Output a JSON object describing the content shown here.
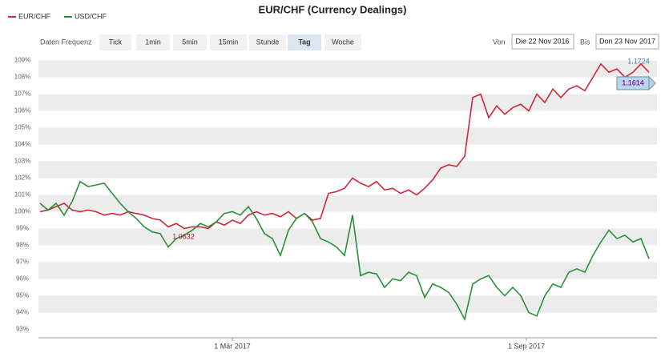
{
  "chart_data": {
    "type": "line",
    "title": "EUR/CHF (Currency Dealings)",
    "toolbar": {
      "label": "Daten Frequenz",
      "buttons": [
        "Tick",
        "1min",
        "5min",
        "15min",
        "Stunde",
        "Tag",
        "Woche"
      ],
      "selected": 5,
      "from_label": "Von",
      "from": "Die 22 Nov 2016",
      "to_label": "Bis",
      "to": "Don 23 Nov 2017"
    },
    "series": [
      {
        "name": "EUR/CHF",
        "color": "#d0263a",
        "values": [
          100.0,
          100.1,
          100.3,
          100.5,
          100.1,
          100.0,
          100.1,
          100.0,
          99.8,
          99.9,
          99.8,
          100.0,
          99.9,
          99.8,
          99.6,
          99.5,
          99.1,
          99.3,
          99.0,
          99.1,
          99.1,
          99.0,
          99.4,
          99.2,
          99.5,
          99.3,
          99.8,
          100.0,
          99.8,
          99.9,
          99.7,
          100.0,
          99.6,
          99.9,
          99.5,
          99.6,
          101.1,
          101.2,
          101.4,
          102.0,
          101.7,
          101.5,
          101.8,
          101.3,
          101.4,
          101.1,
          101.3,
          101.0,
          101.4,
          101.9,
          102.6,
          102.8,
          102.7,
          103.3,
          106.8,
          107.0,
          105.6,
          106.3,
          105.8,
          106.2,
          106.4,
          106.0,
          107.0,
          106.5,
          107.3,
          106.8,
          107.3,
          107.5,
          107.2,
          108.0,
          108.8,
          108.3,
          108.5,
          108.0,
          108.3,
          108.8,
          108.3
        ]
      },
      {
        "name": "USD/CHF",
        "color": "#2a9138",
        "values": [
          100.5,
          100.1,
          100.5,
          99.8,
          100.6,
          101.8,
          101.5,
          101.6,
          101.7,
          101.1,
          100.5,
          100.0,
          99.6,
          99.1,
          98.8,
          98.7,
          97.9,
          98.4,
          98.6,
          98.9,
          99.3,
          99.1,
          99.4,
          99.9,
          100.0,
          99.8,
          100.3,
          99.6,
          98.7,
          98.4,
          97.4,
          98.9,
          99.6,
          99.9,
          99.4,
          98.4,
          98.2,
          97.9,
          97.4,
          99.8,
          96.2,
          96.4,
          96.3,
          95.5,
          96.0,
          95.9,
          96.4,
          96.2,
          94.9,
          95.7,
          95.5,
          95.2,
          94.5,
          93.6,
          95.7,
          96.0,
          96.2,
          95.5,
          95.0,
          95.5,
          95.0,
          94.0,
          93.8,
          95.0,
          95.7,
          95.5,
          96.4,
          96.6,
          96.4,
          97.4,
          98.2,
          98.9,
          98.4,
          98.6,
          98.2,
          98.4,
          97.2
        ]
      }
    ],
    "xlim": [
      0,
      76
    ],
    "xticks": [
      {
        "value": 24,
        "label": "1 Mär 2017"
      },
      {
        "value": 60.7,
        "label": "1 Sep 2017"
      }
    ],
    "ylim": [
      92.5,
      109.6
    ],
    "yticks": [
      {
        "value": 93,
        "label": "93%"
      },
      {
        "value": 94,
        "label": "94%"
      },
      {
        "value": 95,
        "label": "95%"
      },
      {
        "value": 96,
        "label": "96%"
      },
      {
        "value": 97,
        "label": "97%"
      },
      {
        "value": 98,
        "label": "98%"
      },
      {
        "value": 99,
        "label": "99%"
      },
      {
        "value": 100,
        "label": "100%"
      },
      {
        "value": 101,
        "label": "101%"
      },
      {
        "value": 102,
        "label": "102%"
      },
      {
        "value": 103,
        "label": "103%"
      },
      {
        "value": 104,
        "label": "104%"
      },
      {
        "value": 105,
        "label": "105%"
      },
      {
        "value": 106,
        "label": "106%"
      },
      {
        "value": 107,
        "label": "107%"
      },
      {
        "value": 108,
        "label": "108%"
      },
      {
        "value": 109,
        "label": "109%"
      }
    ],
    "annotations": [
      "1.0632",
      "1.1724",
      "1.1614"
    ],
    "grid": true
  }
}
